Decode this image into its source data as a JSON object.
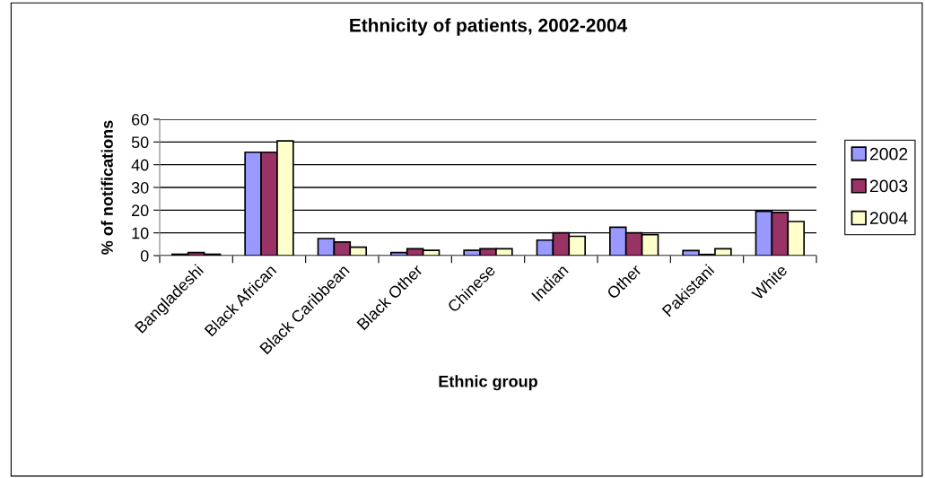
{
  "chart_data": {
    "type": "bar",
    "title": "Ethnicity of patients, 2002-2004",
    "xlabel": "Ethnic group",
    "ylabel": "% of notifications",
    "categories": [
      "Bangladeshi",
      "Black African",
      "Black Caribbean",
      "Black Other",
      "Chinese",
      "Indian",
      "Other",
      "Pakistani",
      "White"
    ],
    "series": [
      {
        "name": "2002",
        "color": "#9999ff",
        "values": [
          0.6,
          45.5,
          7.5,
          1.3,
          2.3,
          6.8,
          12.5,
          2.2,
          19.5
        ]
      },
      {
        "name": "2003",
        "color": "#993366",
        "values": [
          1.3,
          45.5,
          6,
          3,
          3,
          10,
          10,
          0.5,
          19
        ]
      },
      {
        "name": "2004",
        "color": "#ffffcc",
        "values": [
          0.6,
          50.5,
          3.7,
          2.3,
          3,
          8.5,
          9.2,
          3,
          15
        ]
      }
    ],
    "ylim": [
      0,
      60
    ],
    "yticks": [
      0,
      10,
      20,
      30,
      40,
      50,
      60
    ],
    "grid": "y",
    "legend": "right"
  }
}
